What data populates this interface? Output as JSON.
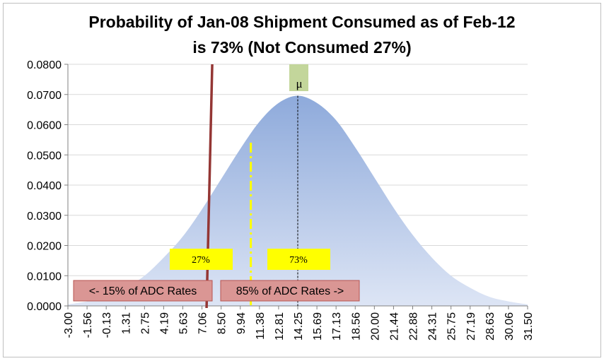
{
  "chart_data": {
    "type": "area",
    "title_line1": "Probability of Jan-08 Shipment Consumed as of Feb-12",
    "title_line2": "is 73% (Not Consumed 27%)",
    "xlabel": "",
    "ylabel": "",
    "x_ticks": [
      "-3.00",
      "-1.56",
      "-0.13",
      "1.31",
      "2.75",
      "4.19",
      "5.63",
      "7.06",
      "8.50",
      "9.94",
      "11.38",
      "12.81",
      "14.25",
      "15.69",
      "17.13",
      "18.56",
      "20.00",
      "21.44",
      "22.88",
      "24.31",
      "25.75",
      "27.19",
      "28.63",
      "30.06",
      "31.50"
    ],
    "y_ticks": [
      "0.0000",
      "0.0100",
      "0.0200",
      "0.0300",
      "0.0400",
      "0.0500",
      "0.0600",
      "0.0700",
      "0.0800"
    ],
    "ylim": [
      0,
      0.08
    ],
    "series": [
      {
        "values": [
          0.0005,
          0.0015,
          0.003,
          0.006,
          0.01,
          0.016,
          0.023,
          0.032,
          0.042,
          0.052,
          0.061,
          0.0672,
          0.0696,
          0.0672,
          0.0615,
          0.0525,
          0.0425,
          0.0325,
          0.0235,
          0.016,
          0.01,
          0.006,
          0.003,
          0.0015,
          0.0005
        ]
      }
    ],
    "mean_label": "μ",
    "mean_x_index": 12,
    "current_line_x_index": 7.35,
    "percentile_line_x_index": 9.55,
    "left_pct_label": "27%",
    "right_pct_label": "73%",
    "left_range_label": "<- 15% of ADC Rates",
    "right_range_label": "85% of ADC Rates ->",
    "colors": {
      "area_top": "#8EAADB",
      "area_bottom": "#DDE5F5",
      "current_line": "#943634",
      "percentile_line": "#FFFF00",
      "pct_box": "#FFFF00",
      "range_box": "#DA9694",
      "mu_box": "#C3D69B"
    }
  }
}
